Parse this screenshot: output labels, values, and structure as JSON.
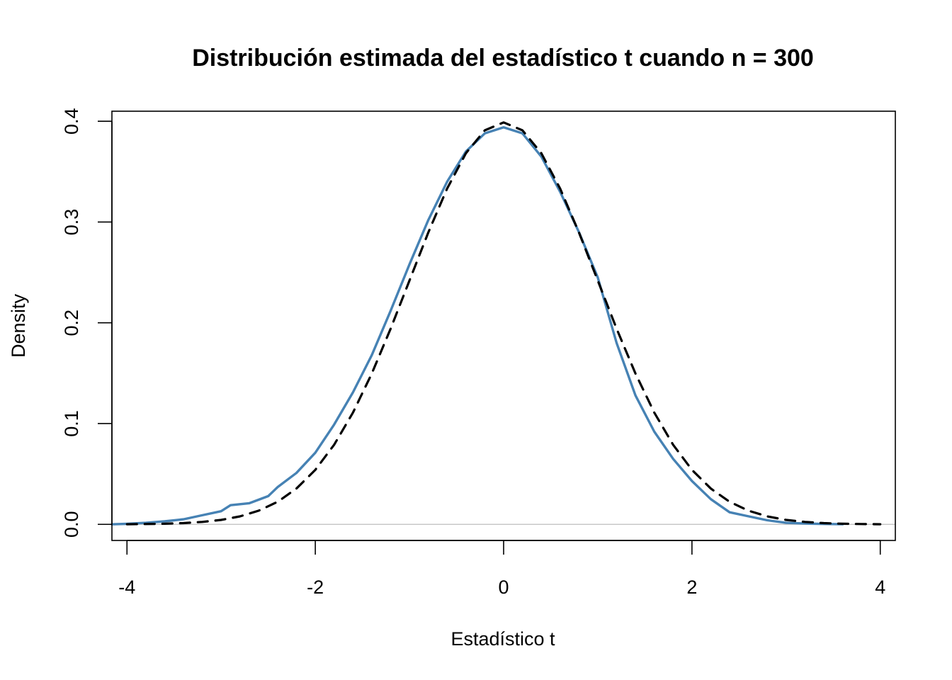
{
  "chart_data": {
    "type": "line",
    "title": "Distribución estimada del estadístico t cuando n = 300",
    "xlabel": "Estadístico t",
    "ylabel": "Density",
    "xlim": [
      -4.16,
      4.16
    ],
    "ylim": [
      -0.016,
      0.41
    ],
    "x_ticks": [
      {
        "value": -4,
        "label": "-4"
      },
      {
        "value": -2,
        "label": "-2"
      },
      {
        "value": 0,
        "label": "0"
      },
      {
        "value": 2,
        "label": "2"
      },
      {
        "value": 4,
        "label": "4"
      }
    ],
    "y_ticks": [
      {
        "value": 0.0,
        "label": "0.0"
      },
      {
        "value": 0.1,
        "label": "0.1"
      },
      {
        "value": 0.2,
        "label": "0.2"
      },
      {
        "value": 0.3,
        "label": "0.3"
      },
      {
        "value": 0.4,
        "label": "0.4"
      }
    ],
    "grid": false,
    "baseline": {
      "y": 0,
      "color": "#bebebe"
    },
    "series": [
      {
        "style": "solid",
        "color": "#4682b4",
        "x": [
          -4.32,
          -4.0,
          -3.8,
          -3.6,
          -3.4,
          -3.2,
          -3.0,
          -2.9,
          -2.7,
          -2.5,
          -2.4,
          -2.2,
          -2.0,
          -1.8,
          -1.6,
          -1.4,
          -1.2,
          -1.0,
          -0.8,
          -0.6,
          -0.4,
          -0.2,
          0.0,
          0.2,
          0.4,
          0.6,
          0.8,
          1.0,
          1.2,
          1.4,
          1.6,
          1.8,
          2.0,
          2.2,
          2.4,
          2.6,
          2.8,
          3.0,
          3.2,
          3.4,
          3.6
        ],
        "y": [
          0.0,
          0.0005,
          0.0015,
          0.003,
          0.005,
          0.009,
          0.013,
          0.019,
          0.021,
          0.028,
          0.037,
          0.051,
          0.071,
          0.099,
          0.131,
          0.168,
          0.212,
          0.258,
          0.302,
          0.34,
          0.37,
          0.388,
          0.394,
          0.388,
          0.365,
          0.33,
          0.29,
          0.245,
          0.18,
          0.128,
          0.092,
          0.065,
          0.043,
          0.025,
          0.012,
          0.008,
          0.004,
          0.0015,
          0.0008,
          0.0004,
          0.0001
        ]
      },
      {
        "style": "dashed",
        "color": "#000000",
        "x": [
          -4.0,
          -3.8,
          -3.6,
          -3.4,
          -3.2,
          -3.0,
          -2.8,
          -2.6,
          -2.4,
          -2.2,
          -2.0,
          -1.8,
          -1.6,
          -1.4,
          -1.2,
          -1.0,
          -0.8,
          -0.6,
          -0.4,
          -0.2,
          0.0,
          0.2,
          0.4,
          0.6,
          0.8,
          1.0,
          1.2,
          1.4,
          1.6,
          1.8,
          2.0,
          2.2,
          2.4,
          2.6,
          2.8,
          3.0,
          3.2,
          3.4,
          3.6,
          3.8,
          4.0
        ],
        "y": [
          0.0001,
          0.0003,
          0.0006,
          0.0012,
          0.0024,
          0.0044,
          0.0079,
          0.0136,
          0.0224,
          0.0355,
          0.054,
          0.079,
          0.1109,
          0.1497,
          0.1942,
          0.242,
          0.2897,
          0.3332,
          0.3683,
          0.391,
          0.3989,
          0.391,
          0.3683,
          0.3332,
          0.2897,
          0.242,
          0.1942,
          0.1497,
          0.1109,
          0.079,
          0.054,
          0.0355,
          0.0224,
          0.0136,
          0.0079,
          0.0044,
          0.0024,
          0.0012,
          0.0006,
          0.0003,
          0.0001
        ]
      }
    ]
  }
}
